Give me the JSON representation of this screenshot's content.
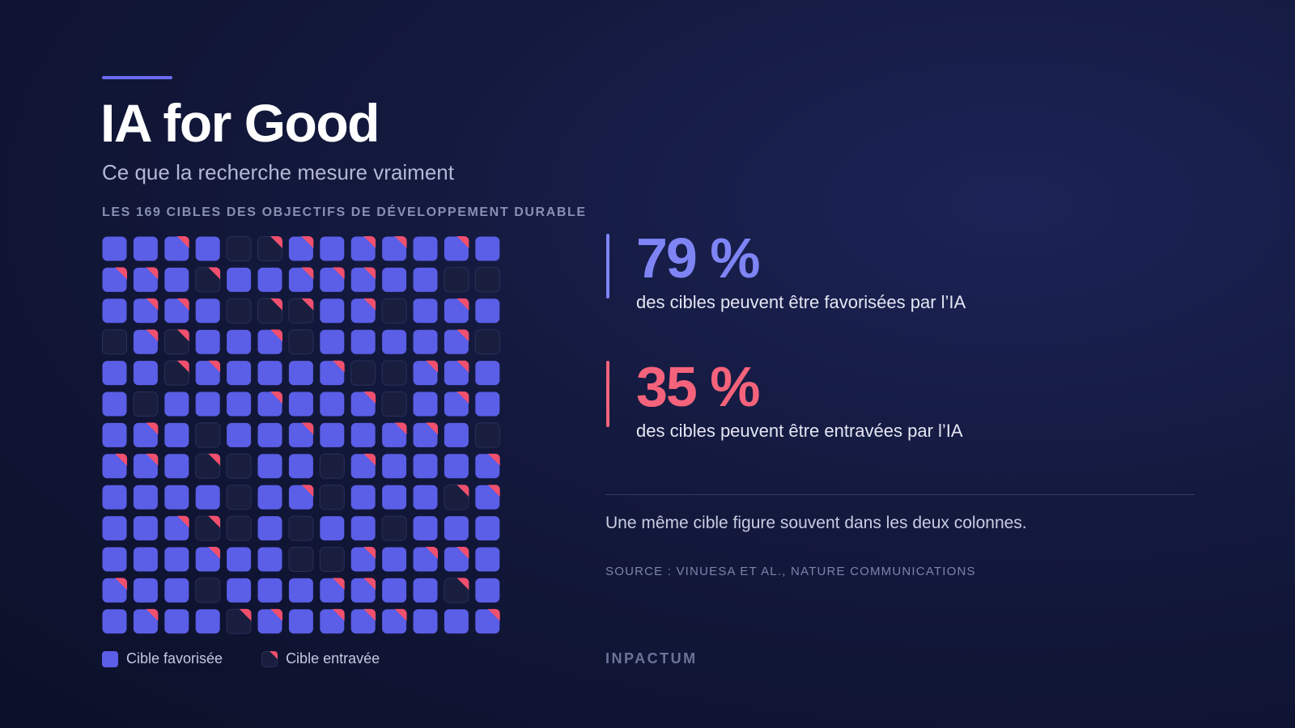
{
  "header": {
    "title": "IA for Good",
    "subtitle": "Ce que la recherche mesure vraiment",
    "section_label": "LES 169 CIBLES DES OBJECTIFS DE DÉVELOPPEMENT DURABLE"
  },
  "colors": {
    "favorable": "#5b5ee6",
    "hindered": "#f0506e",
    "empty": "#191e3e",
    "empty_border": "#2a3058"
  },
  "chart_data": {
    "type": "waffle",
    "rows": 13,
    "columns": 13,
    "total": 169,
    "legend": [
      "Cible favorisée",
      "Cible entravée"
    ],
    "cells": [
      "f",
      "f",
      "b",
      "f",
      "e",
      "h",
      "b",
      "f",
      "b",
      "b",
      "f",
      "b",
      "f",
      "b",
      "b",
      "f",
      "h",
      "f",
      "f",
      "b",
      "b",
      "b",
      "f",
      "f",
      "e",
      "e",
      "f",
      "b",
      "b",
      "f",
      "e",
      "h",
      "h",
      "f",
      "b",
      "e",
      "f",
      "b",
      "f",
      "e",
      "b",
      "h",
      "f",
      "f",
      "b",
      "e",
      "f",
      "f",
      "f",
      "f",
      "b",
      "e",
      "f",
      "f",
      "h",
      "b",
      "f",
      "f",
      "f",
      "b",
      "e",
      "e",
      "b",
      "b",
      "f",
      "f",
      "e",
      "f",
      "f",
      "f",
      "b",
      "f",
      "f",
      "b",
      "e",
      "f",
      "b",
      "f",
      "f",
      "b",
      "f",
      "e",
      "f",
      "f",
      "b",
      "f",
      "f",
      "b",
      "b",
      "f",
      "e",
      "b",
      "b",
      "f",
      "h",
      "e",
      "f",
      "f",
      "e",
      "b",
      "f",
      "f",
      "f",
      "b",
      "f",
      "f",
      "f",
      "f",
      "e",
      "f",
      "b",
      "e",
      "f",
      "f",
      "f",
      "h",
      "b",
      "f",
      "f",
      "b",
      "h",
      "e",
      "f",
      "e",
      "f",
      "f",
      "e",
      "f",
      "f",
      "f",
      "f",
      "f",
      "f",
      "b",
      "f",
      "f",
      "e",
      "e",
      "b",
      "f",
      "b",
      "b",
      "f",
      "b",
      "f",
      "f",
      "e",
      "f",
      "f",
      "f",
      "b",
      "b",
      "f",
      "f",
      "h",
      "f",
      "f",
      "b",
      "f",
      "f",
      "h",
      "b",
      "f",
      "b",
      "b",
      "b",
      "f",
      "f",
      "b"
    ]
  },
  "stats": [
    {
      "value": "79 %",
      "description": "des cibles peuvent être favorisées par l’IA",
      "color": "#7f84f5"
    },
    {
      "value": "35 %",
      "description": "des cibles peuvent être entravées par l’IA",
      "color": "#f4637b"
    }
  ],
  "note": "Une même cible figure souvent dans les deux colonnes.",
  "source": "SOURCE : VINUESA ET AL., NATURE COMMUNICATIONS",
  "brand": "INPACTUM"
}
